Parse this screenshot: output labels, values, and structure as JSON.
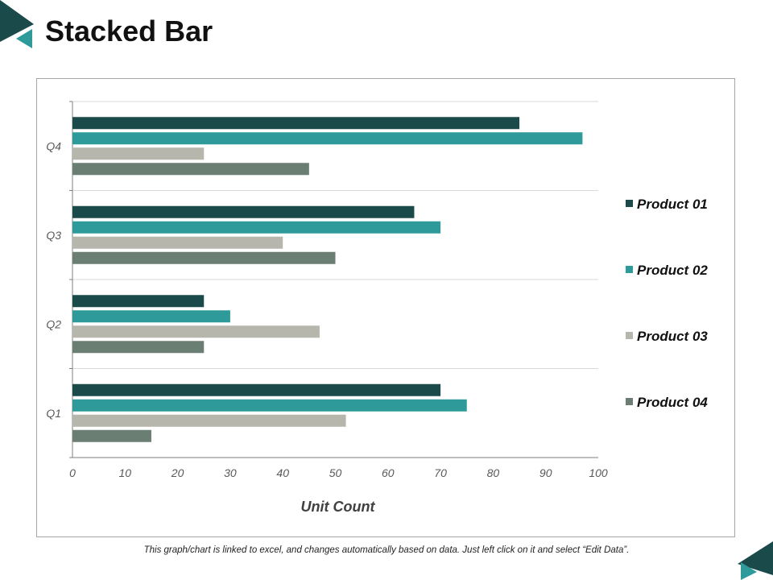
{
  "slide": {
    "title": "Stacked Bar",
    "footnote": "This graph/chart is linked to excel, and changes automatically based on data. Just left click on it and select “Edit Data”."
  },
  "colors": {
    "accent_dark": "#1b4a4a",
    "accent_teal": "#2e9a9a",
    "accent_gray": "#b6b6ac",
    "accent_slate": "#6b7e74",
    "gridline": "#d9d9d9",
    "axis": "#7f7f7f"
  },
  "chart_data": {
    "type": "bar",
    "orientation": "horizontal",
    "categories": [
      "Q1",
      "Q2",
      "Q3",
      "Q4"
    ],
    "series": [
      {
        "name": "Product  01",
        "color": "#1b4a4a",
        "values": [
          70,
          25,
          65,
          85
        ]
      },
      {
        "name": "Product  02",
        "color": "#2e9a9a",
        "values": [
          75,
          30,
          70,
          97
        ]
      },
      {
        "name": "Product  03",
        "color": "#b6b6ac",
        "values": [
          52,
          47,
          40,
          25
        ]
      },
      {
        "name": "Product 04",
        "color": "#6b7e74",
        "values": [
          15,
          25,
          50,
          45
        ]
      }
    ],
    "xticks": [
      "0",
      "10",
      "20",
      "30",
      "40",
      "50",
      "60",
      "70",
      "80",
      "90",
      "100"
    ],
    "xlabel": "Unit Count",
    "ylabel": "",
    "xlim": [
      0,
      100
    ],
    "grid": true,
    "legend_position": "right"
  }
}
